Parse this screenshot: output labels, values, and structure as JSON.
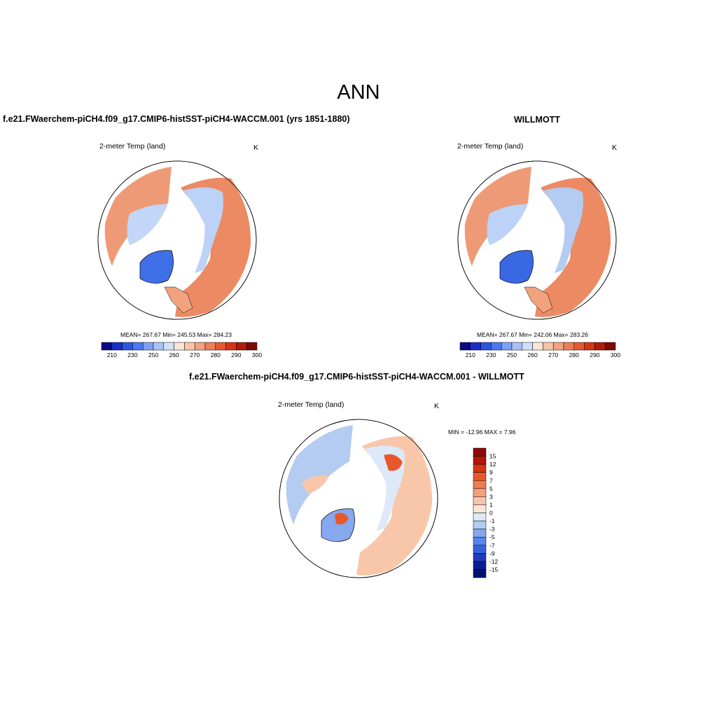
{
  "season": "ANN",
  "panels": [
    {
      "title": "f.e21.FWaerchem-piCH4.f09_g17.CMIP6-histSST-piCH4-WACCM.001 (yrs 1851-1880)",
      "variable": "2-meter Temp (land)",
      "units": "K",
      "stats": "MEAN= 267.67  Min= 245.53  Max= 284.23"
    },
    {
      "title": "WILLMOTT",
      "variable": "2-meter Temp (land)",
      "units": "K",
      "stats": "MEAN= 267.67  Min= 242.06  Max= 283.26"
    },
    {
      "title": "f.e21.FWaerchem-piCH4.f09_g17.CMIP6-histSST-piCH4-WACCM.001 - WILLMOTT",
      "variable": "2-meter Temp (land)",
      "units": "K",
      "stats": "MIN = -12.96 MAX =   7.96"
    }
  ],
  "abs_colorbar": {
    "labels": [
      "210",
      "230",
      "250",
      "260",
      "270",
      "280",
      "290",
      "300"
    ],
    "colors": [
      "#0a0a85",
      "#1a2ec8",
      "#2a55e0",
      "#4a78f0",
      "#7ea0f4",
      "#a8c2f6",
      "#cfe0fa",
      "#fbe6d8",
      "#f6c4a8",
      "#f0a37e",
      "#ea7e58",
      "#e45a32",
      "#d63418",
      "#b01a0a",
      "#7d0a04"
    ]
  },
  "diff_colorbar": {
    "labels": [
      "15",
      "12",
      "9",
      "7",
      "5",
      "3",
      "1",
      "0",
      "-1",
      "-3",
      "-5",
      "-7",
      "-9",
      "-12",
      "-15"
    ],
    "colors": [
      "#8b0a04",
      "#b51508",
      "#d43414",
      "#e9582c",
      "#f07c52",
      "#f4a07c",
      "#f8c7aa",
      "#fbe5d6",
      "#dde9f8",
      "#b4cbf2",
      "#86a8ee",
      "#5a84ea",
      "#3560dc",
      "#1d3cbc",
      "#0a1f92",
      "#06116f"
    ]
  }
}
